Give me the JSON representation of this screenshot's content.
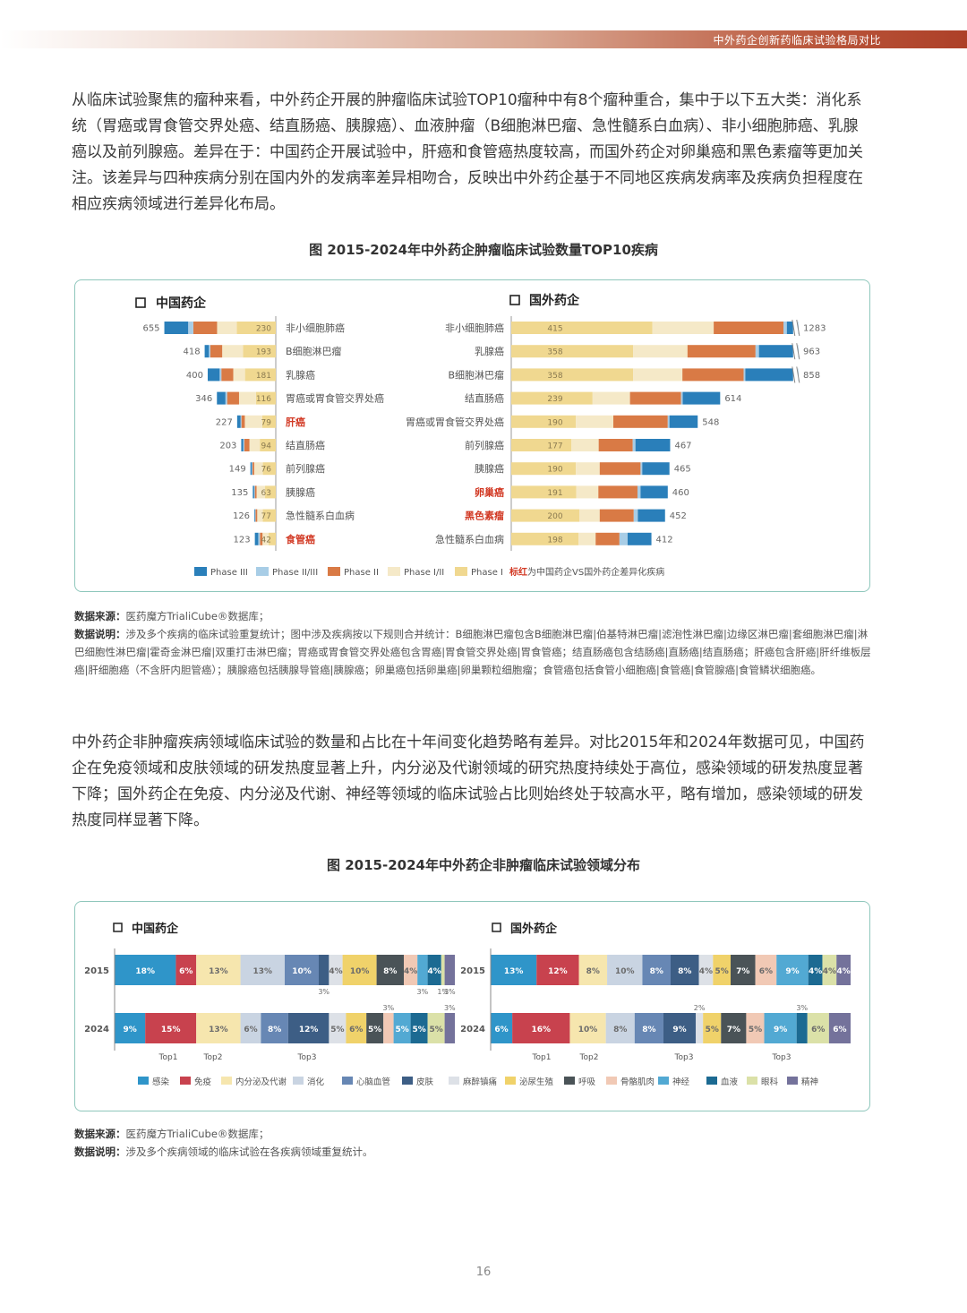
{
  "header": {
    "title": "中外药企创新药临床试验格局对比"
  },
  "paragraph1": "从临床试验聚焦的瘤种来看，中外药企开展的肿瘤临床试验TOP10瘤种中有8个瘤种重合，集中于以下五大类：消化系统（胃癌或胃食管交界处癌、结直肠癌、胰腺癌）、血液肿瘤（B细胞淋巴瘤、急性髓系白血病）、非小细胞肺癌、乳腺癌以及前列腺癌。差异在于：中国药企开展试验中，肝癌和食管癌热度较高，而国外药企对卵巢癌和黑色素瘤等更加关注。该差异与四种疾病分别在国内外的发病率差异相吻合，反映出中外药企基于不同地区疾病发病率及疾病负担程度在相应疾病领域进行差异化布局。",
  "figure1": {
    "title": "图 2015-2024年中外药企肿瘤临床试验数量TOP10疾病",
    "left_title": "中国药企",
    "right_title": "国外药企",
    "legend": [
      "Phase III",
      "Phase II/III",
      "Phase II",
      "Phase I/II",
      "Phase I"
    ],
    "legend_note_red": "标红",
    "legend_note_rest": "为中国药企VS国外药企差异化疾病"
  },
  "chart_data": [
    {
      "type": "bar",
      "title": "中国药企",
      "series_names": [
        "Phase III",
        "Phase II/III",
        "Phase II",
        "Phase I/II",
        "Phase I"
      ],
      "categories": [
        "非小细胞肺癌",
        "B细胞淋巴瘤",
        "乳腺癌",
        "胃癌或胃食管交界处癌",
        "肝癌",
        "结直肠癌",
        "前列腺癌",
        "胰腺癌",
        "急性髓系白血病",
        "食管癌"
      ],
      "highlight": [
        false,
        false,
        false,
        false,
        true,
        false,
        false,
        false,
        false,
        true
      ],
      "totals": [
        655,
        418,
        400,
        346,
        227,
        203,
        149,
        135,
        126,
        123
      ],
      "phase_i": [
        230,
        193,
        181,
        116,
        79,
        94,
        76,
        63,
        77,
        42
      ],
      "segments": [
        [
          140,
          30,
          140,
          115,
          230
        ],
        [
          25,
          8,
          70,
          122,
          193
        ],
        [
          70,
          10,
          70,
          69,
          181
        ],
        [
          50,
          10,
          70,
          100,
          116
        ],
        [
          20,
          5,
          20,
          103,
          79
        ],
        [
          12,
          6,
          30,
          61,
          94
        ],
        [
          8,
          4,
          10,
          51,
          76
        ],
        [
          8,
          4,
          10,
          50,
          63
        ],
        [
          4,
          3,
          10,
          32,
          77
        ],
        [
          20,
          10,
          15,
          36,
          42
        ]
      ]
    },
    {
      "type": "bar",
      "title": "国外药企",
      "series_names": [
        "Phase I",
        "Phase I/II",
        "Phase II",
        "Phase II/III",
        "Phase III"
      ],
      "categories": [
        "非小细胞肺癌",
        "乳腺癌",
        "B细胞淋巴瘤",
        "结直肠癌",
        "胃癌或胃食管交界处癌",
        "前列腺癌",
        "胰腺癌",
        "卵巢癌",
        "黑色素瘤",
        "急性髓系白血病"
      ],
      "highlight": [
        false,
        false,
        false,
        false,
        false,
        false,
        false,
        true,
        true,
        false
      ],
      "totals": [
        1283,
        963,
        858,
        614,
        548,
        467,
        465,
        460,
        452,
        412
      ],
      "phase_i": [
        415,
        358,
        358,
        239,
        190,
        177,
        190,
        191,
        200,
        198
      ],
      "segments": [
        [
          415,
          180,
          205,
          10,
          473
        ],
        [
          358,
          160,
          200,
          10,
          235
        ],
        [
          358,
          145,
          180,
          5,
          170
        ],
        [
          239,
          110,
          150,
          5,
          110
        ],
        [
          190,
          110,
          160,
          5,
          83
        ],
        [
          177,
          80,
          100,
          8,
          102
        ],
        [
          190,
          70,
          120,
          5,
          80
        ],
        [
          191,
          65,
          115,
          9,
          80
        ],
        [
          200,
          60,
          100,
          12,
          80
        ],
        [
          198,
          50,
          70,
          24,
          70
        ]
      ]
    },
    {
      "type": "bar",
      "title": "中国药企",
      "stacked": "percent",
      "categories": [
        "2015",
        "2024"
      ],
      "series_names": [
        "感染",
        "免疫",
        "内分泌及代谢",
        "消化",
        "心脑血管",
        "皮肤",
        "麻醉镇痛",
        "泌尿生殖",
        "呼吸",
        "骨骼肌肉",
        "神经",
        "血液",
        "眼科",
        "精神"
      ],
      "values": [
        [
          18,
          6,
          13,
          13,
          10,
          3,
          4,
          10,
          8,
          4,
          3,
          4,
          1,
          3
        ],
        [
          9,
          15,
          13,
          6,
          8,
          12,
          5,
          6,
          5,
          3,
          5,
          5,
          5,
          3
        ]
      ],
      "labels": [
        [
          "18%",
          "6%",
          "13%",
          "13%",
          "10%",
          "3%",
          "4%",
          "10%",
          "8%",
          "4%",
          "3%",
          "4%",
          "1%",
          "3%"
        ],
        [
          "9%",
          "15%",
          "13%",
          "6%",
          "8%",
          "12%",
          "5%",
          "6%",
          "5%",
          "3%",
          "5%",
          "5%",
          "5%",
          "3%"
        ]
      ],
      "x_marks": [
        "Top1",
        "Top2",
        "Top3"
      ]
    },
    {
      "type": "bar",
      "title": "国外药企",
      "stacked": "percent",
      "categories": [
        "2015",
        "2024"
      ],
      "series_names": [
        "感染",
        "免疫",
        "内分泌及代谢",
        "消化",
        "心脑血管",
        "皮肤",
        "麻醉镇痛",
        "泌尿生殖",
        "呼吸",
        "骨骼肌肉",
        "神经",
        "血液",
        "眼科",
        "精神"
      ],
      "values": [
        [
          13,
          12,
          8,
          10,
          8,
          8,
          4,
          5,
          7,
          6,
          9,
          4,
          4,
          4
        ],
        [
          6,
          16,
          10,
          8,
          8,
          9,
          2,
          5,
          7,
          5,
          9,
          3,
          6,
          6
        ]
      ],
      "labels": [
        [
          "13%",
          "12%",
          "8%",
          "10%",
          "8%",
          "8%",
          "4%",
          "5%",
          "7%",
          "6%",
          "9%",
          "4%",
          "4%",
          "4%"
        ],
        [
          "6%",
          "16%",
          "10%",
          "8%",
          "8%",
          "9%",
          "2%",
          "5%",
          "7%",
          "5%",
          "9%",
          "3%",
          "6%",
          "6%"
        ]
      ],
      "x_marks": [
        "Top1",
        "Top2",
        "Top3",
        "Top3"
      ]
    }
  ],
  "note1": {
    "source_label": "数据来源：",
    "source_text": "医药魔方TrialiCube®数据库；",
    "desc_label": "数据说明：",
    "desc_text": "涉及多个疾病的临床试验重复统计；图中涉及疾病按以下规则合并统计：B细胞淋巴瘤包含B细胞淋巴瘤|伯基特淋巴瘤|滤泡性淋巴瘤|边缘区淋巴瘤|套细胞淋巴瘤|淋巴细胞性淋巴瘤|霍奇金淋巴瘤|双重打击淋巴瘤；胃癌或胃食管交界处癌包含胃癌|胃食管交界处癌|胃食管癌；结直肠癌包含结肠癌|直肠癌|结直肠癌；肝癌包含肝癌|肝纤维板层癌|肝细胞癌（不含肝内胆管癌）；胰腺癌包括胰腺导管癌|胰腺癌；卵巢癌包括卵巢癌|卵巢颗粒细胞瘤；食管癌包括食管小细胞癌|食管癌|食管腺癌|食管鳞状细胞癌。"
  },
  "paragraph2": "中外药企非肿瘤疾病领域临床试验的数量和占比在十年间变化趋势略有差异。对比2015年和2024年数据可见，中国药企在免疫领域和皮肤领域的研发热度显著上升，内分泌及代谢领域的研究热度持续处于高位，感染领域的研发热度显著下降；国外药企在免疫、内分泌及代谢、神经等领域的临床试验占比则始终处于较高水平，略有增加，感染领域的研发热度同样显著下降。",
  "figure2": {
    "title": "图 2015-2024年中外药企非肿瘤临床试验领域分布",
    "left_title": "中国药企",
    "right_title": "国外药企"
  },
  "note2": {
    "source_label": "数据来源：",
    "source_text": "医药魔方TrialiCube®数据库；",
    "desc_label": "数据说明：",
    "desc_text": "涉及多个疾病领域的临床试验在各疾病领域重复统计。"
  },
  "page_number": "16",
  "colors": {
    "phase3": "#2a7fba",
    "phase23": "#a8cde6",
    "phase2": "#d97a45",
    "phase12": "#f5e9c8",
    "phase1": "#f0d890",
    "highlight": "#d23a25",
    "areas": [
      "#2f95c9",
      "#c8424e",
      "#f6e6ae",
      "#c9d4e2",
      "#6787b4",
      "#3d5e85",
      "#dde1e7",
      "#f0d26a",
      "#4a5357",
      "#f1c9b5",
      "#52a9d3",
      "#1c6a92",
      "#dbe1a8",
      "#74729b"
    ]
  }
}
